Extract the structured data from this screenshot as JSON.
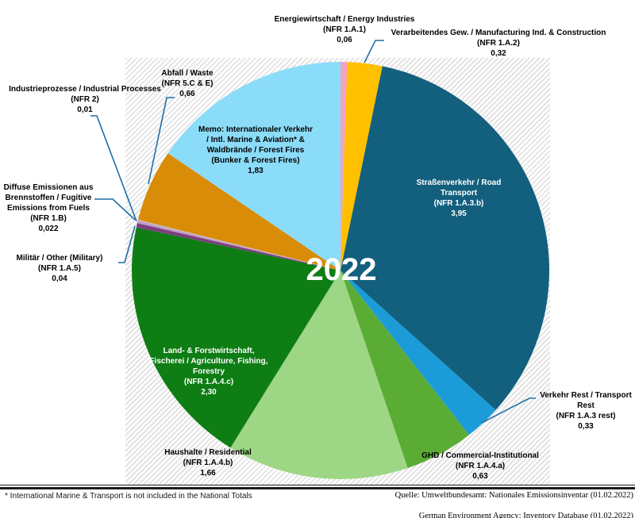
{
  "chart_data": {
    "type": "pie",
    "title": "2022",
    "center_label": "2022",
    "direction": "clockwise",
    "start_angle_deg": 0,
    "total": 11.812,
    "series": [
      {
        "name": "Energiewirtschaft / Energy Industries",
        "nfr": "NFR 1.A.1",
        "value": 0.06,
        "display": "0,06",
        "color": "#F2A2C3"
      },
      {
        "name": "Verarbeitendes Gew. / Manufacturing Ind. & Construction",
        "nfr": "NFR 1.A.2",
        "value": 0.32,
        "display": "0,32",
        "color": "#FFC000"
      },
      {
        "name": "Straßenverkehr / Road Transport",
        "nfr": "NFR 1.A.3.b",
        "value": 3.95,
        "display": "3,95",
        "color": "#135F7E"
      },
      {
        "name": "Verkehr Rest / Transport Rest",
        "nfr": "NFR 1.A.3 rest",
        "value": 0.33,
        "display": "0,33",
        "color": "#1B9CD9"
      },
      {
        "name": "GHD / Commercial-Institutional",
        "nfr": "NFR 1.A.4.a",
        "value": 0.63,
        "display": "0,63",
        "color": "#5BAC35"
      },
      {
        "name": "Haushalte / Residential",
        "nfr": "NFR 1.A.4.b",
        "value": 1.66,
        "display": "1,66",
        "color": "#9DD684"
      },
      {
        "name": "Land- & Forstwirtschaft, Fischerei / Agriculture, Fishing, Forestry",
        "nfr": "NFR 1.A.4.c",
        "value": 2.3,
        "display": "2,30",
        "color": "#0E7D14"
      },
      {
        "name": "Militär / Other (Military)",
        "nfr": "NFR 1.A.5",
        "value": 0.04,
        "display": "0,04",
        "color": "#7D3F7D"
      },
      {
        "name": "Diffuse Emissionen aus Brennstoffen / Fugitive Emissions from Fuels",
        "nfr": "NFR 1.B",
        "value": 0.022,
        "display": "0,022",
        "color": "#C49AC4"
      },
      {
        "name": "Industrieprozesse / Industrial Processes",
        "nfr": "NFR 2",
        "value": 0.01,
        "display": "0,01",
        "color": "#BFBFBF"
      },
      {
        "name": "Abfall / Waste",
        "nfr": "NFR 5.C & E",
        "value": 0.66,
        "display": "0,66",
        "color": "#D98C07"
      },
      {
        "name": "Memo: Internationaler Verkehr / Intl. Marine & Aviation* & Waldbrände / Forest Fires (Bunker & Forest Fires)",
        "nfr": "",
        "value": 1.83,
        "display": "1,83",
        "color": "#8BDCF9"
      }
    ]
  },
  "labels": {
    "energie": {
      "lines": [
        "Energiewirtschaft / Energy Industries",
        "(NFR 1.A.1)",
        "0,06"
      ]
    },
    "verarb": {
      "lines": [
        "Verarbeitendes Gew. / Manufacturing Ind. & Construction",
        "(NFR 1.A.2)",
        "0,32"
      ]
    },
    "abfall": {
      "lines": [
        "Abfall / Waste",
        "(NFR 5.C & E)",
        "0,66"
      ]
    },
    "indproz": {
      "lines": [
        "Industrieprozesse / Industrial Processes",
        "(NFR 2)",
        "0,01"
      ]
    },
    "diffuse": {
      "lines": [
        "Diffuse Emissionen aus",
        "Brennstoffen / Fugitive",
        "Emissions from Fuels",
        "(NFR 1.B)",
        "0,022"
      ]
    },
    "militaer": {
      "lines": [
        "Militär / Other (Military)",
        "(NFR 1.A.5)",
        "0,04"
      ]
    },
    "haushalte": {
      "lines": [
        "Haushalte / Residential",
        "(NFR 1.A.4.b)",
        "1,66"
      ]
    },
    "ghd": {
      "lines": [
        "GHD / Commercial-Institutional",
        "(NFR 1.A.4.a)",
        "0,63"
      ]
    },
    "verkehrrest": {
      "lines": [
        "Verkehr Rest / Transport",
        "Rest",
        "(NFR 1.A.3 rest)",
        "0,33"
      ]
    },
    "landforst": {
      "lines": [
        "Land- & Forstwirtschaft,",
        "Fischerei / Agriculture, Fishing,",
        "Forestry",
        "(NFR 1.A.4.c)",
        "2,30"
      ]
    },
    "strasse": {
      "lines": [
        "Straßenverkehr / Road",
        "Transport",
        "(NFR 1.A.3.b)",
        "3,95"
      ]
    },
    "memo": {
      "lines": [
        "Memo: Internationaler Verkehr",
        "/ Intl. Marine & Aviation* &",
        "Waldbrände / Forest Fires",
        "(Bunker & Forest Fires)",
        "1,83"
      ]
    }
  },
  "footer": {
    "footnote": "* International Marine & Transport is not included in the National Totals",
    "source_line1": "Quelle: Umweltbundesamt: Nationales Emissionsinventar (01.02.2022)",
    "source_line2": "German Environment Agency: Inventory Database (01.02.2022)"
  },
  "colors": {
    "leader_line": "#1F6FA6",
    "hatch_stripe": "#E3E3E3"
  }
}
